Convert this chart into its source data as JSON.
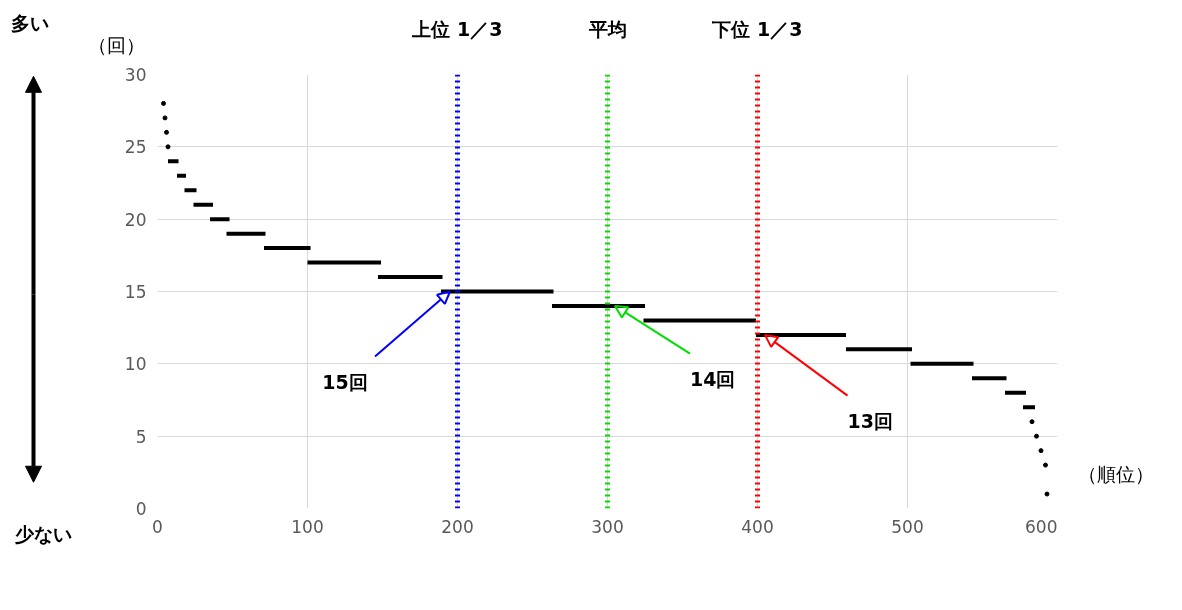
{
  "chart_data": {
    "type": "line",
    "xlabel": "（順位）",
    "ylabel": "（回）",
    "xlim": [
      0,
      600
    ],
    "xticks": [
      0,
      100,
      200,
      300,
      400,
      500,
      600
    ],
    "ylim": [
      0,
      30
    ],
    "yticks": [
      0,
      5,
      10,
      15,
      20,
      25,
      30
    ],
    "grid": true,
    "series": [
      {
        "type": "scatter",
        "color": "#000000",
        "x": [
          4,
          5,
          6,
          7,
          583,
          586,
          589,
          592,
          593
        ],
        "values": [
          28,
          27,
          26,
          25,
          6,
          5,
          4,
          3,
          1
        ]
      },
      {
        "color": "#000000",
        "x": [
          7,
          14
        ],
        "values": [
          24,
          24
        ]
      },
      {
        "color": "#000000",
        "x": [
          13,
          19
        ],
        "values": [
          23,
          23
        ]
      },
      {
        "color": "#000000",
        "x": [
          18,
          26
        ],
        "values": [
          22,
          22
        ]
      },
      {
        "color": "#000000",
        "x": [
          24,
          37
        ],
        "values": [
          21,
          21
        ]
      },
      {
        "color": "#000000",
        "x": [
          35,
          48
        ],
        "values": [
          20,
          20
        ]
      },
      {
        "color": "#000000",
        "x": [
          46,
          72
        ],
        "values": [
          19,
          19
        ]
      },
      {
        "color": "#000000",
        "x": [
          71,
          102
        ],
        "values": [
          18,
          18
        ]
      },
      {
        "color": "#000000",
        "x": [
          100,
          149
        ],
        "values": [
          17,
          17
        ]
      },
      {
        "color": "#000000",
        "x": [
          147,
          190
        ],
        "values": [
          16,
          16
        ]
      },
      {
        "color": "#000000",
        "x": [
          189,
          264
        ],
        "values": [
          15,
          15
        ]
      },
      {
        "color": "#000000",
        "x": [
          263,
          325
        ],
        "values": [
          14,
          14
        ]
      },
      {
        "color": "#000000",
        "x": [
          324,
          399
        ],
        "values": [
          13,
          13
        ]
      },
      {
        "color": "#000000",
        "x": [
          399,
          459
        ],
        "values": [
          12,
          12
        ]
      },
      {
        "color": "#000000",
        "x": [
          459,
          503
        ],
        "values": [
          11,
          11
        ]
      },
      {
        "color": "#000000",
        "x": [
          502,
          544
        ],
        "values": [
          10,
          10
        ]
      },
      {
        "color": "#000000",
        "x": [
          543,
          566
        ],
        "values": [
          9,
          9
        ]
      },
      {
        "color": "#000000",
        "x": [
          565,
          579
        ],
        "values": [
          8,
          8
        ]
      },
      {
        "color": "#000000",
        "x": [
          577,
          585
        ],
        "values": [
          7,
          7
        ]
      }
    ],
    "ref_lines": [
      {
        "axis": "x",
        "value": 200,
        "label": "上位 1／3",
        "color": "#0000ff",
        "line_style": "dotted"
      },
      {
        "axis": "x",
        "value": 300,
        "label": "平均",
        "color": "#00dd00",
        "line_style": "dotted"
      },
      {
        "axis": "x",
        "value": 400,
        "label": "下位 1／3",
        "color": "#ff0000",
        "line_style": "dotted"
      }
    ],
    "annotations": [
      {
        "text": "15回",
        "x": 195,
        "y": 15
      },
      {
        "text": "14回",
        "x": 305,
        "y": 14
      },
      {
        "text": "13回",
        "x": 405,
        "y": 12
      },
      "多い",
      "少ない"
    ]
  }
}
